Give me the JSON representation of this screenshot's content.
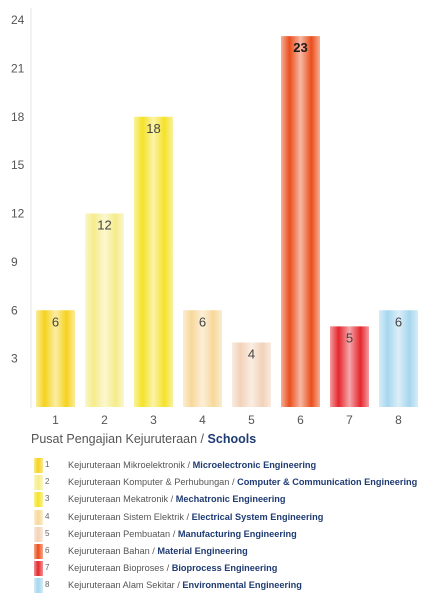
{
  "chart_data": {
    "type": "bar",
    "categories": [
      "1",
      "2",
      "3",
      "4",
      "5",
      "6",
      "7",
      "8"
    ],
    "values": [
      6,
      12,
      18,
      6,
      4,
      23,
      5,
      6
    ],
    "data_labels": [
      "6",
      "12",
      "18",
      "6",
      "4",
      "23",
      "5",
      "6"
    ],
    "y_ticks": [
      "3",
      "6",
      "9",
      "12",
      "15",
      "18",
      "21",
      "24"
    ],
    "ylim": [
      0,
      24
    ],
    "grid": false,
    "colors": [
      "#f5d21e",
      "#f5ec8a",
      "#f4e228",
      "#f7d89a",
      "#f2d2b8",
      "#ea4e1b",
      "#e4262d",
      "#a6d6ee"
    ]
  },
  "legend": {
    "title_ms": "Pusat Pengajian Kejuruteraan /",
    "title_en": "Schools",
    "items": [
      {
        "num": "1",
        "ms": "Kejuruteraan Mikroelektronik /",
        "en": "Microelectronic Engineering"
      },
      {
        "num": "2",
        "ms": "Kejuruteraan Komputer & Perhubungan /",
        "en": "Computer & Communication Engineering"
      },
      {
        "num": "3",
        "ms": "Kejuruteraan Mekatronik /",
        "en": "Mechatronic Engineering"
      },
      {
        "num": "4",
        "ms": "Kejuruteraan Sistem Elektrik /",
        "en": "Electrical System Engineering"
      },
      {
        "num": "5",
        "ms": "Kejuruteraan Pembuatan /",
        "en": "Manufacturing Engineering"
      },
      {
        "num": "6",
        "ms": "Kejuruteraan Bahan /",
        "en": "Material Engineering"
      },
      {
        "num": "7",
        "ms": "Kejuruteraan Bioproses /",
        "en": "Bioprocess Engineering"
      },
      {
        "num": "8",
        "ms": "Kejuruteraan Alam Sekitar /",
        "en": "Environmental Engineering"
      }
    ]
  }
}
